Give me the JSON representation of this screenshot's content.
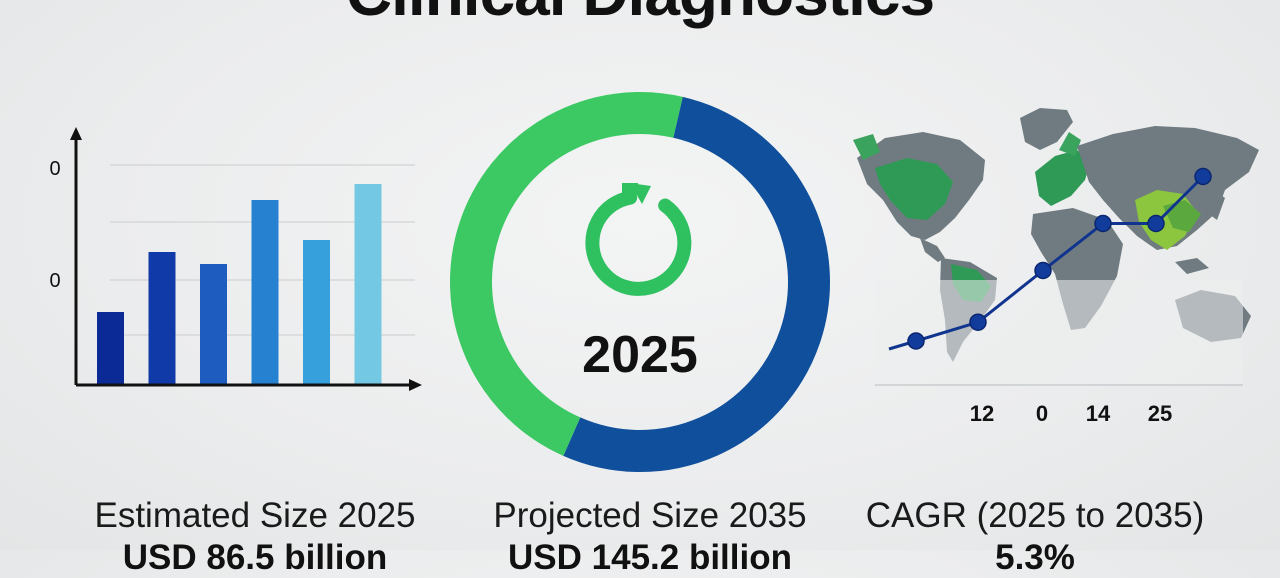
{
  "title": "Clinical Diagnostics",
  "colors": {
    "navy": "#0c2a96",
    "dark_blue": "#0f4aa2",
    "mid_blue": "#1f63bf",
    "blue": "#2682d0",
    "sky": "#35a0dc",
    "light_cyan": "#73c9e3",
    "green": "#3cc964",
    "map_gray": "#6f7b80",
    "map_green": "#2f9a55",
    "map_lime": "#8cc63f",
    "line_blue": "#11358f"
  },
  "bar_chart": {
    "y_tick_labels": [
      "0",
      "0"
    ],
    "values": [
      1.8,
      3.3,
      3.0,
      4.6,
      3.6,
      5.0
    ],
    "bar_colors": [
      "#0c2a96",
      "#0f3aa8",
      "#1f5cbf",
      "#2682d0",
      "#35a0dc",
      "#73c9e3"
    ]
  },
  "donut": {
    "center_label": "2025",
    "icon": "refresh-icon",
    "segments": [
      {
        "fraction": 0.53,
        "color": "#0f4f9b"
      },
      {
        "fraction": 0.47,
        "color": "#3cc964"
      }
    ]
  },
  "map_chart": {
    "icon": "world-map-icon",
    "x_labels": [
      "12",
      "0",
      "14",
      "25"
    ],
    "line_values": [
      1.0,
      1.4,
      2.5,
      3.5,
      3.5,
      4.5
    ]
  },
  "stats": [
    {
      "caption": "Estimated Size 2025",
      "value": "USD 86.5 billion"
    },
    {
      "caption": "Projected Size 2035",
      "value": "USD 145.2 billion"
    },
    {
      "caption": "CAGR (2025 to 2035)",
      "value": "5.3%"
    }
  ]
}
